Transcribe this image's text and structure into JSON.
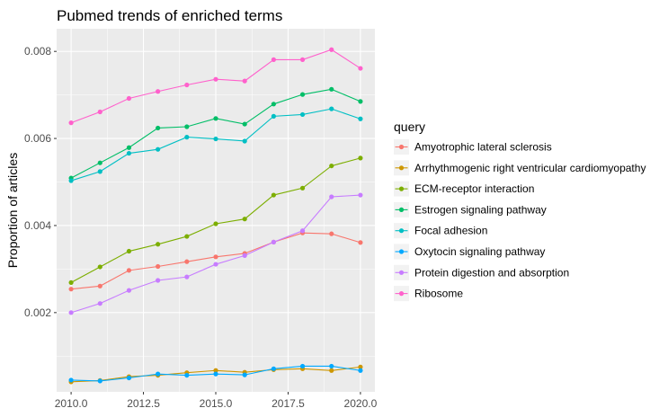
{
  "chart_data": {
    "type": "line",
    "title": "Pubmed trends of enriched terms",
    "xlabel": "",
    "ylabel": "Proportion of articles",
    "x": [
      2010,
      2011,
      2012,
      2013,
      2014,
      2015,
      2016,
      2017,
      2018,
      2019,
      2020
    ],
    "x_ticks": [
      2010,
      2012.5,
      2015,
      2017.5,
      2020
    ],
    "x_tick_labels": [
      "2010.0",
      "2012.5",
      "2015.0",
      "2017.5",
      "2020.0"
    ],
    "y_ticks": [
      0.002,
      0.004,
      0.006,
      0.008
    ],
    "y_tick_labels": [
      "0.002",
      "0.004",
      "0.006",
      "0.008"
    ],
    "xlim": [
      2009.5,
      2020.5
    ],
    "ylim": [
      0.00018,
      0.00852
    ],
    "grid": true,
    "legend_title": "query",
    "legend_position": "right",
    "series": [
      {
        "name": "Amyotrophic lateral sclerosis",
        "color": "#F8766D",
        "values": [
          0.00254,
          0.00261,
          0.00297,
          0.00306,
          0.00317,
          0.00328,
          0.00336,
          0.00362,
          0.00383,
          0.00381,
          0.00361
        ]
      },
      {
        "name": "Arrhythmogenic right ventricular cardiomyopathy",
        "color": "#CD9600",
        "values": [
          0.00041,
          0.00044,
          0.00053,
          0.00056,
          0.00062,
          0.00067,
          0.00063,
          0.00069,
          0.00071,
          0.00067,
          0.00075
        ]
      },
      {
        "name": "ECM-receptor interaction",
        "color": "#7CAE00",
        "values": [
          0.00269,
          0.00305,
          0.00341,
          0.00357,
          0.00375,
          0.00404,
          0.00415,
          0.0047,
          0.00486,
          0.00537,
          0.00555
        ]
      },
      {
        "name": "Estrogen signaling pathway",
        "color": "#00BE67",
        "values": [
          0.00509,
          0.00544,
          0.00579,
          0.00624,
          0.00627,
          0.00646,
          0.00633,
          0.00679,
          0.00701,
          0.00713,
          0.00685
        ]
      },
      {
        "name": "Focal adhesion",
        "color": "#00BFC4",
        "values": [
          0.00503,
          0.00524,
          0.00566,
          0.00575,
          0.00603,
          0.00599,
          0.00594,
          0.00651,
          0.00655,
          0.00668,
          0.00645
        ]
      },
      {
        "name": "Oxytocin signaling pathway",
        "color": "#00A9FF",
        "values": [
          0.00045,
          0.00043,
          0.0005,
          0.00059,
          0.00056,
          0.00059,
          0.00057,
          0.00071,
          0.00077,
          0.00077,
          0.00067
        ]
      },
      {
        "name": "Protein digestion and absorption",
        "color": "#C77CFF",
        "values": [
          0.002,
          0.00221,
          0.00251,
          0.00274,
          0.00282,
          0.00311,
          0.00331,
          0.00362,
          0.00388,
          0.00466,
          0.0047
        ]
      },
      {
        "name": "Ribosome",
        "color": "#FF61CC",
        "values": [
          0.00636,
          0.00661,
          0.00692,
          0.00708,
          0.00723,
          0.00736,
          0.00732,
          0.00781,
          0.00781,
          0.00804,
          0.00761
        ]
      }
    ]
  }
}
